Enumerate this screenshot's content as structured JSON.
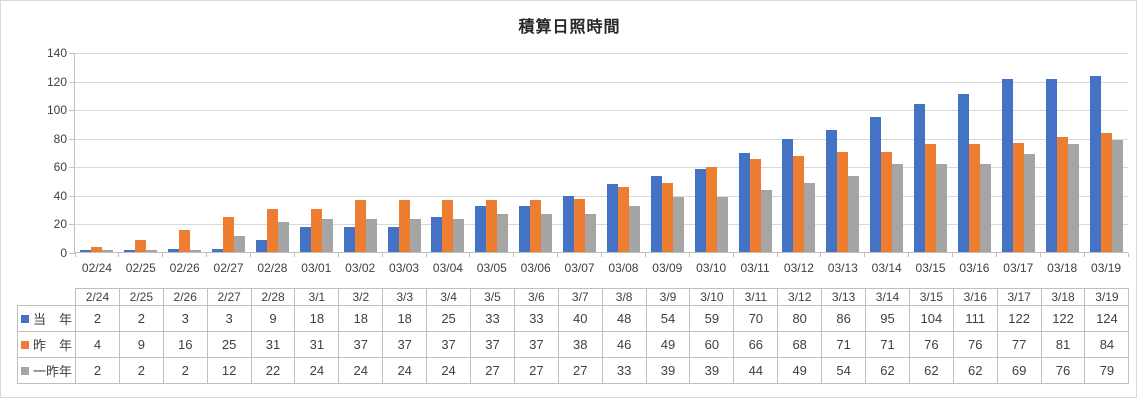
{
  "chart_data": {
    "type": "bar",
    "title": "積算日照時間",
    "x_labels": [
      "02/24",
      "02/25",
      "02/26",
      "02/27",
      "02/28",
      "03/01",
      "03/02",
      "03/03",
      "03/04",
      "03/05",
      "03/06",
      "03/07",
      "03/08",
      "03/09",
      "03/10",
      "03/11",
      "03/12",
      "03/13",
      "03/14",
      "03/15",
      "03/16",
      "03/17",
      "03/18",
      "03/19"
    ],
    "table_columns": [
      "2/24",
      "2/25",
      "2/26",
      "2/27",
      "2/28",
      "3/1",
      "3/2",
      "3/3",
      "3/4",
      "3/5",
      "3/6",
      "3/7",
      "3/8",
      "3/9",
      "3/10",
      "3/11",
      "3/12",
      "3/13",
      "3/14",
      "3/15",
      "3/16",
      "3/17",
      "3/18",
      "3/19"
    ],
    "series": [
      {
        "name": "当　年",
        "color": "#4472C4",
        "values": [
          2,
          2,
          3,
          3,
          9,
          18,
          18,
          18,
          25,
          33,
          33,
          40,
          48,
          54,
          59,
          70,
          80,
          86,
          95,
          104,
          111,
          122,
          122,
          124
        ]
      },
      {
        "name": "昨　年",
        "color": "#ED7D31",
        "values": [
          4,
          9,
          16,
          25,
          31,
          31,
          37,
          37,
          37,
          37,
          37,
          38,
          46,
          49,
          60,
          66,
          68,
          71,
          71,
          76,
          76,
          77,
          81,
          84
        ]
      },
      {
        "name": "一昨年",
        "color": "#A5A5A5",
        "values": [
          2,
          2,
          2,
          12,
          22,
          24,
          24,
          24,
          24,
          27,
          27,
          27,
          33,
          39,
          39,
          44,
          49,
          54,
          62,
          62,
          62,
          69,
          76,
          79
        ]
      }
    ],
    "ylim": [
      0,
      140
    ],
    "yticks": [
      0,
      20,
      40,
      60,
      80,
      100,
      120,
      140
    ],
    "grid": true,
    "legend_position": "table-row-headers"
  },
  "colors": {
    "grid": "#D9D9D9",
    "axis": "#BFBFBF",
    "table_border": "#BFBFBF",
    "text": "#404040",
    "frame_border": "#D9D9D9",
    "background": "#FFFFFF"
  }
}
